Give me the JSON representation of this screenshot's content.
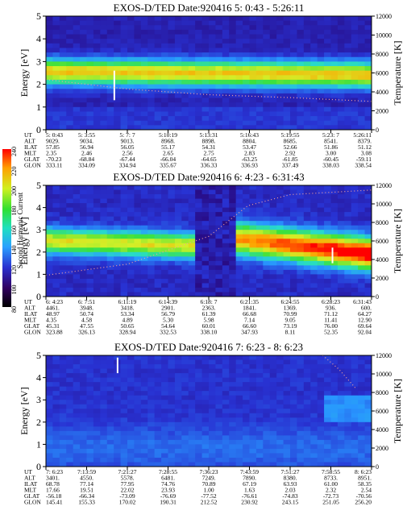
{
  "colorbar": {
    "label": "Second Harmonic Current",
    "ticks": [
      "80",
      "100",
      "120",
      "140",
      "160",
      "180",
      "200",
      "220",
      "240"
    ]
  },
  "chart_data": [
    {
      "type": "heatmap",
      "title": "EXOS-D/TED   Date:920416  5: 0:43 - 5:26:11",
      "ylabel": "Energy [eV]",
      "y2label": "Temperature [K]",
      "ylim": [
        0,
        5
      ],
      "yticks": [
        "0",
        "1",
        "2",
        "3",
        "4",
        "5"
      ],
      "y2lim": [
        0,
        12000
      ],
      "y2ticks": [
        "0",
        "2000",
        "4000",
        "6000",
        "8000",
        "10000",
        "12000"
      ],
      "band": {
        "energy_center": [
          2.55,
          2.4
        ],
        "intensity": 0.62
      },
      "spike": {
        "t": 0.21,
        "e0": 1.3,
        "e1": 2.6
      },
      "temperature_trend": [
        [
          0.0,
          5300
        ],
        [
          0.25,
          4300
        ],
        [
          0.5,
          3700
        ],
        [
          0.75,
          3400
        ],
        [
          1.0,
          3000
        ]
      ],
      "table": {
        "rows": [
          "UT",
          "ALT",
          "ILAT",
          "MLT",
          "GLAT",
          "GLON"
        ],
        "columns": [
          [
            "5: 0:43",
            "9029.",
            "57.85",
            "2.35",
            "-70.23",
            "333.11"
          ],
          [
            "5: 3:55",
            "9034.",
            "56.94",
            "2.46",
            "-68.84",
            "334.09"
          ],
          [
            "5: 7: 7",
            "9013.",
            "56.05",
            "2.56",
            "-67.44",
            "334.94"
          ],
          [
            "5:10:19",
            "8968.",
            "55.17",
            "2.65",
            "-66.04",
            "335.67"
          ],
          [
            "5:13:31",
            "8898.",
            "54.31",
            "2.75",
            "-64.65",
            "336.33"
          ],
          [
            "5:16:43",
            "8804.",
            "53.47",
            "2.83",
            "-63.25",
            "336.93"
          ],
          [
            "5:19:55",
            "8685.",
            "52.66",
            "2.92",
            "-61.85",
            "337.49"
          ],
          [
            "5:23: 7",
            "8541.",
            "51.86",
            "3.00",
            "-60.45",
            "338.03"
          ],
          [
            "5:26:11",
            "8379.",
            "51.12",
            "3.08",
            "-59.11",
            "338.54"
          ]
        ]
      }
    },
    {
      "type": "heatmap",
      "title": "EXOS-D/TED   Date:920416  6: 4:23 - 6:31:43",
      "ylabel": "Energy [eV]",
      "y2label": "Temperature [K]",
      "ylim": [
        0,
        5
      ],
      "yticks": [
        "0",
        "1",
        "2",
        "3",
        "4",
        "5"
      ],
      "y2lim": [
        0,
        12000
      ],
      "y2ticks": [
        "0",
        "2000",
        "4000",
        "6000",
        "8000",
        "10000",
        "12000"
      ],
      "band": {
        "energy_center": [
          2.5,
          2.0
        ],
        "intensity": 0.85
      },
      "spike": {
        "t": 0.88,
        "e0": 1.5,
        "e1": 2.2
      },
      "temperature_trend": [
        [
          0.0,
          2300
        ],
        [
          0.25,
          3500
        ],
        [
          0.5,
          6500
        ],
        [
          0.62,
          9800
        ],
        [
          0.75,
          11000
        ],
        [
          1.0,
          11500
        ]
      ],
      "table": {
        "rows": [
          "UT",
          "ALT",
          "ILAT",
          "MLT",
          "GLAT",
          "GLON"
        ],
        "columns": [
          [
            "6: 4:23",
            "4461.",
            "48.97",
            "4.35",
            "45.31",
            "323.88"
          ],
          [
            "6: 7:51",
            "3948.",
            "50.74",
            "4.58",
            "47.55",
            "326.13"
          ],
          [
            "6:11:19",
            "3418.",
            "53.34",
            "4.89",
            "50.65",
            "328.94"
          ],
          [
            "6:14:39",
            "2901.",
            "56.79",
            "5.30",
            "54.64",
            "332.53"
          ],
          [
            "6:18: 7",
            "2363.",
            "61.39",
            "5.98",
            "60.01",
            "338.10"
          ],
          [
            "6:21:35",
            "1841.",
            "66.68",
            "7.14",
            "66.60",
            "347.93"
          ],
          [
            "6:24:55",
            "1369.",
            "70.99",
            "9.05",
            "73.19",
            "8.11"
          ],
          [
            "6:28:23",
            "936.",
            "71.12",
            "11.41",
            "76.00",
            "52.35"
          ],
          [
            "6:31:43",
            "600.",
            "64.27",
            "12.90",
            "69.64",
            "92.04"
          ]
        ]
      }
    },
    {
      "type": "heatmap",
      "title": "EXOS-D/TED   Date:920416  7: 6:23 - 8: 6:23",
      "ylabel": "Energy [eV]",
      "y2label": "Temperature [K]",
      "ylim": [
        0,
        5
      ],
      "yticks": [
        "0",
        "1",
        "2",
        "3",
        "4",
        "5"
      ],
      "y2lim": [
        0,
        12000
      ],
      "y2ticks": [
        "0",
        "2000",
        "4000",
        "6000",
        "8000",
        "10000",
        "12000"
      ],
      "band": {
        "energy_center": [
          0.6,
          0.6
        ],
        "intensity": 0.15
      },
      "spike": {
        "t": 0.22,
        "e0": 4.2,
        "e1": 4.9
      },
      "temperature_trend": [
        [
          0.85,
          12000
        ],
        [
          0.9,
          10500
        ],
        [
          0.95,
          8500
        ]
      ],
      "table": {
        "rows": [
          "UT",
          "ALT",
          "ILAT",
          "MLT",
          "GLAT",
          "GLON"
        ],
        "columns": [
          [
            "7: 6:23",
            "3401.",
            "68.78",
            "17.66",
            "-56.18",
            "145.41"
          ],
          [
            "7:13:59",
            "4550.",
            "77.14",
            "19.51",
            "-66.34",
            "155.33"
          ],
          [
            "7:21:27",
            "5578.",
            "77.95",
            "22.02",
            "-73.09",
            "170.02"
          ],
          [
            "7:28:55",
            "6481.",
            "74.76",
            "23.93",
            "-76.69",
            "190.31"
          ],
          [
            "7:36:23",
            "7249.",
            "70.89",
            "1.00",
            "-77.52",
            "212.52"
          ],
          [
            "7:43:59",
            "7890.",
            "67.19",
            "1.63",
            "-76.61",
            "230.92"
          ],
          [
            "7:51:27",
            "8380.",
            "63.93",
            "2.03",
            "-74.83",
            "243.15"
          ],
          [
            "7:58:55",
            "8733.",
            "61.00",
            "2.32",
            "-72.73",
            "251.05"
          ],
          [
            "8: 6:23",
            "8951.",
            "58.35",
            "2.54",
            "-70.56",
            "256.20"
          ]
        ]
      }
    }
  ]
}
